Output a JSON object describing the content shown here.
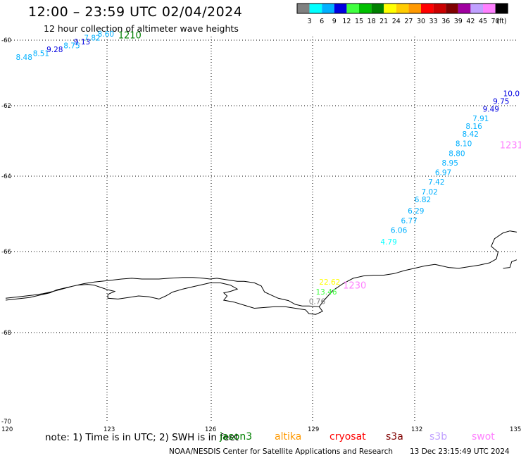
{
  "title": "12:00 – 23:59 UTC 02/04/2024",
  "subtitle": "12 hour collection of altimeter wave heights",
  "colorbar": {
    "colors": [
      "#808080",
      "#00ffff",
      "#00b0ff",
      "#0000e0",
      "#40ff40",
      "#00c000",
      "#008000",
      "#ffff00",
      "#ffcc00",
      "#ff9900",
      "#ff0000",
      "#cc0000",
      "#800000",
      "#a000a0",
      "#c0a0ff",
      "#ff80ff",
      "#000000"
    ],
    "labels": [
      "3",
      "6",
      "9",
      "12",
      "15",
      "18",
      "21",
      "24",
      "27",
      "30",
      "33",
      "36",
      "39",
      "42",
      "45",
      "70",
      "(ft)"
    ]
  },
  "axes": {
    "x_ticks": [
      "120",
      "123",
      "126",
      "129",
      "132",
      "135"
    ],
    "y_ticks": [
      "-60",
      "-62",
      "-64",
      "-66",
      "-68",
      "-70"
    ]
  },
  "chart_data": {
    "type": "scatter",
    "xlim": [
      120,
      135
    ],
    "ylim": [
      -70,
      -60
    ],
    "grid": true,
    "tracks": [
      {
        "time_label": "1210",
        "label_color": "#008000",
        "label_lon": 123.3,
        "label_lat": -60.05,
        "points": [
          {
            "lon": 120.3,
            "lat": -60.6,
            "v": "8.48",
            "c": "#00b0ff"
          },
          {
            "lon": 120.8,
            "lat": -60.5,
            "v": "8.51",
            "c": "#00b0ff"
          },
          {
            "lon": 121.2,
            "lat": -60.4,
            "v": "9.28",
            "c": "#0000e0"
          },
          {
            "lon": 121.7,
            "lat": -60.3,
            "v": "8.75",
            "c": "#00b0ff"
          },
          {
            "lon": 122.0,
            "lat": -60.2,
            "v": "9.13",
            "c": "#0000e0"
          },
          {
            "lon": 122.3,
            "lat": -60.1,
            "v": "7.82",
            "c": "#00b0ff"
          },
          {
            "lon": 122.7,
            "lat": -60.0,
            "v": "8.60",
            "c": "#00b0ff"
          }
        ]
      },
      {
        "time_label": "1231",
        "label_color": "#ff80ff",
        "label_lon": 134.5,
        "label_lat": -62.9,
        "points": [
          {
            "lon": 131.0,
            "lat": -65.4,
            "v": "4.79",
            "c": "#00ffff"
          },
          {
            "lon": 131.3,
            "lat": -65.1,
            "v": "6.06",
            "c": "#00b0ff"
          },
          {
            "lon": 131.6,
            "lat": -64.85,
            "v": "6.77",
            "c": "#00b0ff"
          },
          {
            "lon": 131.8,
            "lat": -64.6,
            "v": "6.29",
            "c": "#00b0ff"
          },
          {
            "lon": 132.0,
            "lat": -64.3,
            "v": "6.82",
            "c": "#00b0ff"
          },
          {
            "lon": 132.2,
            "lat": -64.1,
            "v": "7.02",
            "c": "#00b0ff"
          },
          {
            "lon": 132.4,
            "lat": -63.85,
            "v": "7.42",
            "c": "#00b0ff"
          },
          {
            "lon": 132.6,
            "lat": -63.6,
            "v": "6.97",
            "c": "#00b0ff"
          },
          {
            "lon": 132.8,
            "lat": -63.35,
            "v": "8.95",
            "c": "#00b0ff"
          },
          {
            "lon": 133.0,
            "lat": -63.1,
            "v": "8.80",
            "c": "#00b0ff"
          },
          {
            "lon": 133.2,
            "lat": -62.85,
            "v": "8.10",
            "c": "#00b0ff"
          },
          {
            "lon": 133.4,
            "lat": -62.6,
            "v": "8.42",
            "c": "#00b0ff"
          },
          {
            "lon": 133.5,
            "lat": -62.4,
            "v": "8.16",
            "c": "#00b0ff"
          },
          {
            "lon": 133.7,
            "lat": -62.2,
            "v": "7.91",
            "c": "#00b0ff"
          },
          {
            "lon": 134.0,
            "lat": -61.95,
            "v": "9.49",
            "c": "#0000e0"
          },
          {
            "lon": 134.3,
            "lat": -61.75,
            "v": "9.75",
            "c": "#0000e0"
          },
          {
            "lon": 134.6,
            "lat": -61.55,
            "v": "10.0",
            "c": "#0000e0"
          }
        ]
      },
      {
        "time_label": "1230",
        "label_color": "#ff80ff",
        "label_lon": 129.9,
        "label_lat": -66.55,
        "points": [
          {
            "lon": 128.9,
            "lat": -66.95,
            "v": "0.76",
            "c": "#808080"
          },
          {
            "lon": 129.1,
            "lat": -66.7,
            "v": "13.46",
            "c": "#40ff40"
          },
          {
            "lon": 129.2,
            "lat": -66.45,
            "v": "22.62",
            "c": "#ffff00"
          }
        ]
      }
    ]
  },
  "coastline": [
    [
      [
        120.0,
        -66.85
      ],
      [
        120.3,
        -66.82
      ],
      [
        120.7,
        -66.78
      ],
      [
        121.0,
        -66.72
      ],
      [
        121.3,
        -66.66
      ],
      [
        121.5,
        -66.58
      ],
      [
        121.8,
        -66.52
      ],
      [
        122.1,
        -66.46
      ],
      [
        122.4,
        -66.44
      ],
      [
        122.6,
        -66.46
      ],
      [
        122.8,
        -66.52
      ],
      [
        123.0,
        -66.58
      ],
      [
        123.2,
        -66.62
      ],
      [
        123.0,
        -66.7
      ],
      [
        123.0,
        -66.8
      ],
      [
        123.3,
        -66.82
      ],
      [
        123.6,
        -66.78
      ],
      [
        123.9,
        -66.74
      ],
      [
        124.2,
        -66.76
      ],
      [
        124.5,
        -66.82
      ],
      [
        124.7,
        -66.74
      ],
      [
        124.9,
        -66.64
      ],
      [
        125.2,
        -66.56
      ],
      [
        125.5,
        -66.5
      ],
      [
        125.8,
        -66.44
      ],
      [
        126.0,
        -66.4
      ],
      [
        126.3,
        -66.4
      ],
      [
        126.6,
        -66.46
      ],
      [
        126.8,
        -66.56
      ],
      [
        126.6,
        -66.62
      ],
      [
        126.4,
        -66.66
      ],
      [
        126.5,
        -66.74
      ],
      [
        126.4,
        -66.85
      ],
      [
        126.7,
        -66.9
      ],
      [
        127.0,
        -66.98
      ],
      [
        127.3,
        -67.06
      ],
      [
        127.6,
        -67.04
      ],
      [
        127.9,
        -67.02
      ],
      [
        128.2,
        -67.02
      ],
      [
        128.5,
        -67.06
      ],
      [
        128.8,
        -67.1
      ],
      [
        128.9,
        -67.2
      ],
      [
        129.1,
        -67.22
      ],
      [
        129.3,
        -67.14
      ],
      [
        129.2,
        -67.02
      ],
      [
        128.9,
        -67.0
      ],
      [
        128.7,
        -67.0
      ],
      [
        128.5,
        -66.96
      ],
      [
        128.3,
        -66.86
      ],
      [
        128.0,
        -66.8
      ],
      [
        127.8,
        -66.72
      ],
      [
        127.6,
        -66.64
      ],
      [
        127.5,
        -66.48
      ],
      [
        127.3,
        -66.4
      ],
      [
        127.0,
        -66.36
      ],
      [
        126.8,
        -66.36
      ],
      [
        126.5,
        -66.32
      ],
      [
        126.2,
        -66.28
      ],
      [
        126.0,
        -66.3
      ],
      [
        125.8,
        -66.28
      ],
      [
        125.5,
        -66.26
      ],
      [
        125.2,
        -66.26
      ],
      [
        124.8,
        -66.28
      ],
      [
        124.5,
        -66.3
      ],
      [
        124.0,
        -66.3
      ],
      [
        123.7,
        -66.28
      ],
      [
        123.4,
        -66.3
      ],
      [
        123.0,
        -66.34
      ],
      [
        122.6,
        -66.38
      ],
      [
        122.3,
        -66.42
      ],
      [
        122.0,
        -66.48
      ],
      [
        121.7,
        -66.55
      ],
      [
        121.4,
        -66.62
      ],
      [
        121.1,
        -66.68
      ],
      [
        120.8,
        -66.72
      ],
      [
        120.4,
        -66.76
      ],
      [
        120.0,
        -66.8
      ]
    ],
    [
      [
        129.2,
        -67.02
      ],
      [
        129.35,
        -66.85
      ],
      [
        129.6,
        -66.6
      ],
      [
        129.9,
        -66.42
      ],
      [
        130.2,
        -66.28
      ],
      [
        130.5,
        -66.22
      ],
      [
        130.8,
        -66.2
      ],
      [
        131.1,
        -66.2
      ],
      [
        131.4,
        -66.16
      ],
      [
        131.7,
        -66.08
      ],
      [
        132.0,
        -66.02
      ],
      [
        132.3,
        -65.96
      ],
      [
        132.6,
        -65.92
      ],
      [
        132.8,
        -65.96
      ],
      [
        133.0,
        -66.0
      ],
      [
        133.3,
        -66.02
      ],
      [
        133.6,
        -65.98
      ],
      [
        133.9,
        -65.94
      ],
      [
        134.2,
        -65.88
      ],
      [
        134.4,
        -65.78
      ],
      [
        134.45,
        -65.6
      ],
      [
        134.25,
        -65.45
      ],
      [
        134.35,
        -65.25
      ],
      [
        134.6,
        -65.1
      ],
      [
        134.8,
        -65.05
      ],
      [
        135.0,
        -65.08
      ]
    ],
    [
      [
        134.6,
        -66.02
      ],
      [
        134.8,
        -66.0
      ],
      [
        134.85,
        -65.85
      ],
      [
        135.0,
        -65.8
      ]
    ]
  ],
  "footer": {
    "note": "note: 1) Time is in UTC; 2) SWH is in feet",
    "satellites": [
      {
        "name": "jason3",
        "color": "#008000"
      },
      {
        "name": "altika",
        "color": "#ff9900"
      },
      {
        "name": "cryosat",
        "color": "#ff0000"
      },
      {
        "name": "s3a",
        "color": "#800000"
      },
      {
        "name": "s3b",
        "color": "#c0a0ff"
      },
      {
        "name": "swot",
        "color": "#ff80ff"
      }
    ],
    "credit": "NOAA/NESDIS Center for Satellite Applications and Research",
    "timestamp": "13 Dec 23:15:49 UTC 2024"
  }
}
